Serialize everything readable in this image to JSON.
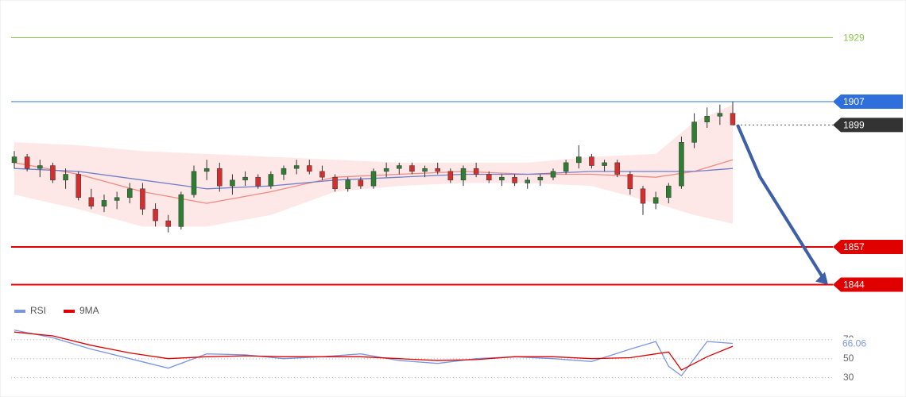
{
  "chart_data": [
    {
      "type": "candlestick",
      "xlim": [
        -0.5,
        56.5
      ],
      "ylim": [
        1839.5,
        1942
      ],
      "up_color": "#2e7d32",
      "down_color": "#d32f2f",
      "candles": [
        {
          "o": 1886,
          "h": 1890,
          "l": 1884,
          "c": 1888
        },
        {
          "o": 1888,
          "h": 1889,
          "l": 1883,
          "c": 1884
        },
        {
          "o": 1884,
          "h": 1887,
          "l": 1881,
          "c": 1885
        },
        {
          "o": 1885,
          "h": 1886,
          "l": 1879,
          "c": 1880
        },
        {
          "o": 1880,
          "h": 1884,
          "l": 1877,
          "c": 1882
        },
        {
          "o": 1882,
          "h": 1883,
          "l": 1873,
          "c": 1874
        },
        {
          "o": 1874,
          "h": 1877,
          "l": 1870,
          "c": 1871
        },
        {
          "o": 1871,
          "h": 1875,
          "l": 1869,
          "c": 1873
        },
        {
          "o": 1873,
          "h": 1876,
          "l": 1870,
          "c": 1874
        },
        {
          "o": 1874,
          "h": 1879,
          "l": 1872,
          "c": 1877
        },
        {
          "o": 1877,
          "h": 1879,
          "l": 1868,
          "c": 1870
        },
        {
          "o": 1870,
          "h": 1872,
          "l": 1864,
          "c": 1866
        },
        {
          "o": 1866,
          "h": 1868,
          "l": 1862,
          "c": 1864
        },
        {
          "o": 1864,
          "h": 1876,
          "l": 1863,
          "c": 1875
        },
        {
          "o": 1875,
          "h": 1885,
          "l": 1874,
          "c": 1883
        },
        {
          "o": 1883,
          "h": 1887,
          "l": 1880,
          "c": 1884
        },
        {
          "o": 1884,
          "h": 1886,
          "l": 1876,
          "c": 1878
        },
        {
          "o": 1878,
          "h": 1882,
          "l": 1875,
          "c": 1880
        },
        {
          "o": 1880,
          "h": 1883,
          "l": 1878,
          "c": 1881
        },
        {
          "o": 1881,
          "h": 1882,
          "l": 1877,
          "c": 1878
        },
        {
          "o": 1878,
          "h": 1883,
          "l": 1877,
          "c": 1882
        },
        {
          "o": 1882,
          "h": 1885,
          "l": 1880,
          "c": 1884
        },
        {
          "o": 1884,
          "h": 1887,
          "l": 1882,
          "c": 1885
        },
        {
          "o": 1885,
          "h": 1887,
          "l": 1882,
          "c": 1883
        },
        {
          "o": 1883,
          "h": 1885,
          "l": 1880,
          "c": 1881
        },
        {
          "o": 1881,
          "h": 1882,
          "l": 1876,
          "c": 1877
        },
        {
          "o": 1877,
          "h": 1881,
          "l": 1876,
          "c": 1880
        },
        {
          "o": 1880,
          "h": 1881,
          "l": 1877,
          "c": 1878
        },
        {
          "o": 1878,
          "h": 1884,
          "l": 1877,
          "c": 1883
        },
        {
          "o": 1883,
          "h": 1886,
          "l": 1881,
          "c": 1884
        },
        {
          "o": 1884,
          "h": 1886,
          "l": 1882,
          "c": 1885
        },
        {
          "o": 1885,
          "h": 1886,
          "l": 1882,
          "c": 1883
        },
        {
          "o": 1883,
          "h": 1885,
          "l": 1881,
          "c": 1884
        },
        {
          "o": 1884,
          "h": 1886,
          "l": 1882,
          "c": 1883
        },
        {
          "o": 1883,
          "h": 1884,
          "l": 1879,
          "c": 1880
        },
        {
          "o": 1880,
          "h": 1885,
          "l": 1878,
          "c": 1884
        },
        {
          "o": 1884,
          "h": 1886,
          "l": 1881,
          "c": 1882
        },
        {
          "o": 1882,
          "h": 1883,
          "l": 1879,
          "c": 1880
        },
        {
          "o": 1880,
          "h": 1882,
          "l": 1878,
          "c": 1881
        },
        {
          "o": 1881,
          "h": 1882,
          "l": 1878,
          "c": 1879
        },
        {
          "o": 1879,
          "h": 1881,
          "l": 1877,
          "c": 1880
        },
        {
          "o": 1880,
          "h": 1882,
          "l": 1878,
          "c": 1881
        },
        {
          "o": 1881,
          "h": 1884,
          "l": 1880,
          "c": 1883
        },
        {
          "o": 1883,
          "h": 1887,
          "l": 1882,
          "c": 1886
        },
        {
          "o": 1886,
          "h": 1892,
          "l": 1884,
          "c": 1888
        },
        {
          "o": 1888,
          "h": 1889,
          "l": 1884,
          "c": 1885
        },
        {
          "o": 1885,
          "h": 1887,
          "l": 1883,
          "c": 1886
        },
        {
          "o": 1886,
          "h": 1887,
          "l": 1881,
          "c": 1882
        },
        {
          "o": 1882,
          "h": 1883,
          "l": 1875,
          "c": 1877
        },
        {
          "o": 1877,
          "h": 1878,
          "l": 1868,
          "c": 1872
        },
        {
          "o": 1872,
          "h": 1876,
          "l": 1870,
          "c": 1874
        },
        {
          "o": 1874,
          "h": 1879,
          "l": 1872,
          "c": 1878
        },
        {
          "o": 1878,
          "h": 1895,
          "l": 1877,
          "c": 1893
        },
        {
          "o": 1893,
          "h": 1903,
          "l": 1891,
          "c": 1900
        },
        {
          "o": 1900,
          "h": 1905,
          "l": 1898,
          "c": 1902
        },
        {
          "o": 1902,
          "h": 1906,
          "l": 1899,
          "c": 1903
        },
        {
          "o": 1903,
          "h": 1907,
          "l": 1900,
          "c": 1899
        }
      ],
      "band": {
        "color": "#fbd6d3",
        "x": [
          0,
          5,
          10,
          15,
          20,
          25,
          30,
          35,
          40,
          45,
          50,
          53,
          56
        ],
        "upper": [
          1893,
          1892,
          1890,
          1889,
          1888,
          1887,
          1886,
          1886,
          1886,
          1888,
          1889,
          1900,
          1906
        ],
        "lower": [
          1875,
          1870,
          1864,
          1864,
          1868,
          1876,
          1878,
          1879,
          1879,
          1878,
          1872,
          1868,
          1865
        ]
      },
      "overlays": [
        {
          "color": "#f28b82",
          "x": [
            0,
            5,
            10,
            15,
            20,
            25,
            30,
            35,
            40,
            45,
            50,
            53,
            56
          ],
          "values": [
            1886,
            1882,
            1876,
            1872,
            1876,
            1881,
            1882,
            1883,
            1882,
            1882,
            1881,
            1883,
            1887
          ]
        },
        {
          "color": "#6f7fc8",
          "x": [
            0,
            5,
            10,
            15,
            20,
            25,
            30,
            35,
            40,
            45,
            50,
            53,
            56
          ],
          "values": [
            1884,
            1883,
            1880,
            1877,
            1878,
            1880,
            1881,
            1882,
            1882,
            1883,
            1883,
            1883,
            1884
          ]
        }
      ],
      "levels": [
        {
          "value": 1929,
          "color": "#8bc34a",
          "tag": false,
          "dotted": false
        },
        {
          "value": 1907,
          "color": "#2f6fdc",
          "tag": true,
          "dotted": false
        },
        {
          "value": 1899,
          "color": "#333333",
          "tag": true,
          "dotted": true
        },
        {
          "value": 1857,
          "color": "#e00000",
          "tag": true,
          "dotted": false
        },
        {
          "value": 1844,
          "color": "#e00000",
          "tag": true,
          "dotted": false
        }
      ],
      "arrow_color": "#3d5fa8"
    },
    {
      "type": "line",
      "xlim": [
        -0.5,
        56.5
      ],
      "ylim": [
        18,
        89
      ],
      "yticks": [
        30,
        50,
        70
      ],
      "x": [
        0,
        3,
        6,
        9,
        12,
        15,
        18,
        21,
        24,
        27,
        30,
        33,
        36,
        39,
        42,
        45,
        48,
        50,
        51,
        52,
        54,
        56
      ],
      "series": [
        {
          "name": "RSI",
          "color": "#7b96e0",
          "values": [
            80,
            72,
            60,
            50,
            40,
            55,
            54,
            50,
            52,
            55,
            48,
            45,
            50,
            52,
            50,
            47,
            60,
            68,
            42,
            32,
            68,
            66.06
          ]
        },
        {
          "name": "9MA",
          "color": "#e00000",
          "values": [
            78,
            74,
            64,
            56,
            50,
            52,
            53,
            52,
            52,
            52,
            50,
            48,
            49,
            52,
            52,
            50,
            51,
            55,
            57,
            38,
            52,
            63
          ]
        }
      ]
    }
  ]
}
